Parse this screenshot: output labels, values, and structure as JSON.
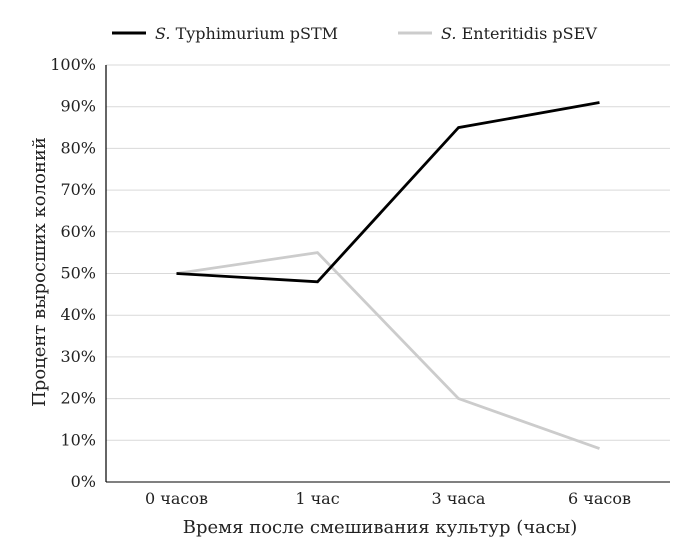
{
  "chart_data": {
    "type": "line",
    "categories": [
      "0 часов",
      "1 час",
      "3 часа",
      "6 часов"
    ],
    "series": [
      {
        "name_prefix": "S.",
        "name_suffix": "Typhimurium pSTM",
        "values": [
          50,
          48,
          85,
          91
        ],
        "color": "#000000"
      },
      {
        "name_prefix": "S.",
        "name_suffix": "Enteritidis pSEV",
        "values": [
          50,
          55,
          20,
          8
        ],
        "color": "#cccccc"
      }
    ],
    "xlabel": "Время после смешивания культур (часы)",
    "ylabel": "Процент выросших колоний",
    "ylim": [
      0,
      100
    ],
    "yticks": [
      "0%",
      "10%",
      "20%",
      "30%",
      "40%",
      "50%",
      "60%",
      "70%",
      "80%",
      "90%",
      "100%"
    ],
    "grid": true,
    "legend_position": "top"
  }
}
